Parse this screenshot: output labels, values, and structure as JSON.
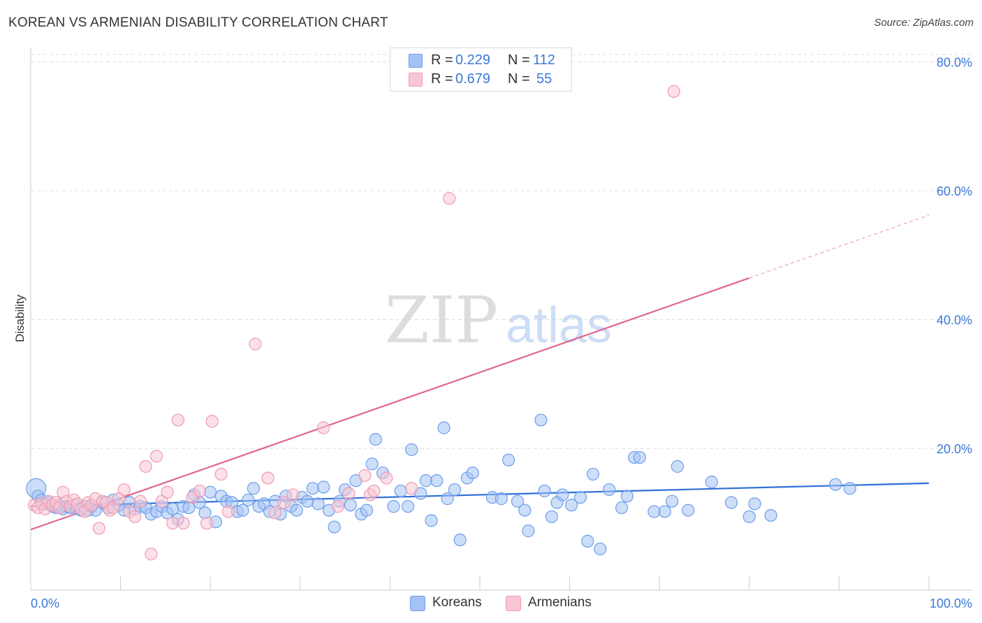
{
  "title": "KOREAN VS ARMENIAN DISABILITY CORRELATION CHART",
  "source": "Source: ZipAtlas.com",
  "watermark": {
    "zip": "ZIP",
    "atlas": "atlas"
  },
  "legend": {
    "rows": [
      {
        "r_label": "R =",
        "r_value": "0.229",
        "n_label": "N =",
        "n_value": "112"
      },
      {
        "r_label": "R =",
        "r_value": "0.679",
        "n_label": "N =",
        "n_value": "55"
      }
    ]
  },
  "colors": {
    "korean_fill": "#a4c2f4",
    "korean_stroke": "#6d9eeb",
    "korean_line": "#2f6fd8",
    "armenian_fill": "#f9c7d4",
    "armenian_stroke": "#ef9ab2",
    "armenian_line": "#e06590",
    "axis_label": "#3c78d8",
    "grid": "#dddddd"
  },
  "chart_data": {
    "type": "scatter",
    "title": "KOREAN VS ARMENIAN DISABILITY CORRELATION CHART",
    "ylabel": "Disability",
    "xlabel": "",
    "xlim": [
      0,
      100
    ],
    "ylim": [
      -2,
      82
    ],
    "x_tick_labels": [
      "0.0%",
      "100.0%"
    ],
    "y_ticks": [
      20,
      40,
      60,
      80
    ],
    "y_tick_labels": [
      "20.0%",
      "40.0%",
      "60.0%",
      "80.0%"
    ],
    "series": [
      {
        "name": "Koreans",
        "r": 0.229,
        "n": 112,
        "trend": {
          "x0": 0,
          "y0": 11.0,
          "x1": 100,
          "y1": 14.6
        },
        "points": [
          [
            0.6,
            13.8
          ],
          [
            0.8,
            12.6
          ],
          [
            1.2,
            12.0
          ],
          [
            1.6,
            11.4
          ],
          [
            2.0,
            11.6
          ],
          [
            2.4,
            11.0
          ],
          [
            2.8,
            10.8
          ],
          [
            3.2,
            11.2
          ],
          [
            3.6,
            10.6
          ],
          [
            4.0,
            11.0
          ],
          [
            4.4,
            10.8
          ],
          [
            4.8,
            11.2
          ],
          [
            5.2,
            10.6
          ],
          [
            5.6,
            10.4
          ],
          [
            6.0,
            11.0
          ],
          [
            6.4,
            10.4
          ],
          [
            6.8,
            11.0
          ],
          [
            7.2,
            10.4
          ],
          [
            8.0,
            11.6
          ],
          [
            8.6,
            10.8
          ],
          [
            9.2,
            12.0
          ],
          [
            9.8,
            11.2
          ],
          [
            10.4,
            10.4
          ],
          [
            11.0,
            11.6
          ],
          [
            11.6,
            10.6
          ],
          [
            12.2,
            11.0
          ],
          [
            12.8,
            10.8
          ],
          [
            13.4,
            9.8
          ],
          [
            14.0,
            10.2
          ],
          [
            14.6,
            11.0
          ],
          [
            15.2,
            10.0
          ],
          [
            15.8,
            10.6
          ],
          [
            16.4,
            9.0
          ],
          [
            17.0,
            11.0
          ],
          [
            17.6,
            10.8
          ],
          [
            18.2,
            12.8
          ],
          [
            18.8,
            11.6
          ],
          [
            19.4,
            10.0
          ],
          [
            20.0,
            13.2
          ],
          [
            20.6,
            8.6
          ],
          [
            21.2,
            12.6
          ],
          [
            21.8,
            11.8
          ],
          [
            22.4,
            11.6
          ],
          [
            23.0,
            10.2
          ],
          [
            23.6,
            10.4
          ],
          [
            24.2,
            12.0
          ],
          [
            24.8,
            13.8
          ],
          [
            25.4,
            11.0
          ],
          [
            26.0,
            11.4
          ],
          [
            26.6,
            10.2
          ],
          [
            27.2,
            11.8
          ],
          [
            27.8,
            9.8
          ],
          [
            28.4,
            12.6
          ],
          [
            29.0,
            11.0
          ],
          [
            29.6,
            10.4
          ],
          [
            30.2,
            12.4
          ],
          [
            30.8,
            11.8
          ],
          [
            31.4,
            13.8
          ],
          [
            32.0,
            11.4
          ],
          [
            32.6,
            14.0
          ],
          [
            33.2,
            10.4
          ],
          [
            33.8,
            7.8
          ],
          [
            34.4,
            11.8
          ],
          [
            35.0,
            13.6
          ],
          [
            35.6,
            11.2
          ],
          [
            36.2,
            15.0
          ],
          [
            36.8,
            9.8
          ],
          [
            37.4,
            10.4
          ],
          [
            38.0,
            17.6
          ],
          [
            38.4,
            21.4
          ],
          [
            39.2,
            16.2
          ],
          [
            40.4,
            11.0
          ],
          [
            41.2,
            13.4
          ],
          [
            42.0,
            11.0
          ],
          [
            42.4,
            19.8
          ],
          [
            43.4,
            13.0
          ],
          [
            44.0,
            15.0
          ],
          [
            44.6,
            8.8
          ],
          [
            45.2,
            15.0
          ],
          [
            46.0,
            23.2
          ],
          [
            46.4,
            12.2
          ],
          [
            47.2,
            13.6
          ],
          [
            47.8,
            5.8
          ],
          [
            48.6,
            15.4
          ],
          [
            49.2,
            16.2
          ],
          [
            51.4,
            12.4
          ],
          [
            52.4,
            12.2
          ],
          [
            53.2,
            18.2
          ],
          [
            54.2,
            11.8
          ],
          [
            55.0,
            10.4
          ],
          [
            55.4,
            7.2
          ],
          [
            56.8,
            24.4
          ],
          [
            57.2,
            13.4
          ],
          [
            58.0,
            9.4
          ],
          [
            58.6,
            11.6
          ],
          [
            59.2,
            12.8
          ],
          [
            60.2,
            11.2
          ],
          [
            61.2,
            12.4
          ],
          [
            62.0,
            5.6
          ],
          [
            62.6,
            16.0
          ],
          [
            63.4,
            4.4
          ],
          [
            64.4,
            13.6
          ],
          [
            65.8,
            10.8
          ],
          [
            66.4,
            12.6
          ],
          [
            67.2,
            18.6
          ],
          [
            67.8,
            18.6
          ],
          [
            69.4,
            10.2
          ],
          [
            70.6,
            10.2
          ],
          [
            71.4,
            11.8
          ],
          [
            72.0,
            17.2
          ],
          [
            73.2,
            10.4
          ],
          [
            75.8,
            14.8
          ],
          [
            78.0,
            11.6
          ],
          [
            80.0,
            9.4
          ],
          [
            80.6,
            11.4
          ],
          [
            82.4,
            9.6
          ],
          [
            89.6,
            14.4
          ],
          [
            91.2,
            13.8
          ]
        ]
      },
      {
        "name": "Armenians",
        "r": 0.679,
        "n": 55,
        "trend": {
          "x0": 0,
          "y0": 7.4,
          "x1": 100,
          "y1": 56.2,
          "solid_until_x": 80
        },
        "points": [
          [
            0.4,
            11.2
          ],
          [
            0.8,
            10.8
          ],
          [
            1.2,
            11.4
          ],
          [
            1.6,
            10.6
          ],
          [
            2.0,
            11.8
          ],
          [
            2.4,
            11.2
          ],
          [
            2.8,
            11.6
          ],
          [
            3.2,
            10.8
          ],
          [
            3.6,
            13.2
          ],
          [
            4.0,
            11.8
          ],
          [
            4.4,
            11.0
          ],
          [
            4.8,
            12.0
          ],
          [
            5.2,
            11.4
          ],
          [
            5.6,
            10.6
          ],
          [
            6.0,
            10.2
          ],
          [
            6.4,
            11.6
          ],
          [
            6.8,
            11.2
          ],
          [
            7.2,
            12.2
          ],
          [
            7.6,
            7.6
          ],
          [
            8.0,
            11.8
          ],
          [
            8.4,
            11.6
          ],
          [
            8.8,
            10.4
          ],
          [
            9.2,
            10.8
          ],
          [
            9.8,
            12.2
          ],
          [
            10.4,
            13.6
          ],
          [
            11.0,
            10.2
          ],
          [
            11.6,
            9.4
          ],
          [
            12.2,
            11.8
          ],
          [
            12.8,
            17.2
          ],
          [
            13.4,
            3.6
          ],
          [
            14.0,
            18.8
          ],
          [
            14.6,
            11.8
          ],
          [
            15.2,
            13.2
          ],
          [
            15.8,
            8.4
          ],
          [
            16.4,
            24.4
          ],
          [
            17.0,
            8.4
          ],
          [
            18.0,
            12.4
          ],
          [
            18.8,
            13.4
          ],
          [
            19.6,
            8.4
          ],
          [
            20.2,
            24.2
          ],
          [
            21.2,
            16.0
          ],
          [
            22.0,
            10.2
          ],
          [
            25.0,
            36.2
          ],
          [
            26.4,
            15.4
          ],
          [
            27.2,
            10.0
          ],
          [
            28.2,
            11.6
          ],
          [
            29.2,
            12.8
          ],
          [
            32.6,
            23.2
          ],
          [
            34.2,
            11.0
          ],
          [
            35.4,
            13.0
          ],
          [
            37.2,
            15.8
          ],
          [
            37.8,
            12.8
          ],
          [
            38.2,
            13.4
          ],
          [
            39.6,
            15.4
          ],
          [
            42.4,
            13.8
          ],
          [
            46.6,
            58.8
          ],
          [
            71.6,
            75.4
          ]
        ]
      }
    ]
  },
  "bottom_legend": {
    "koreans": "Koreans",
    "armenians": "Armenians"
  }
}
